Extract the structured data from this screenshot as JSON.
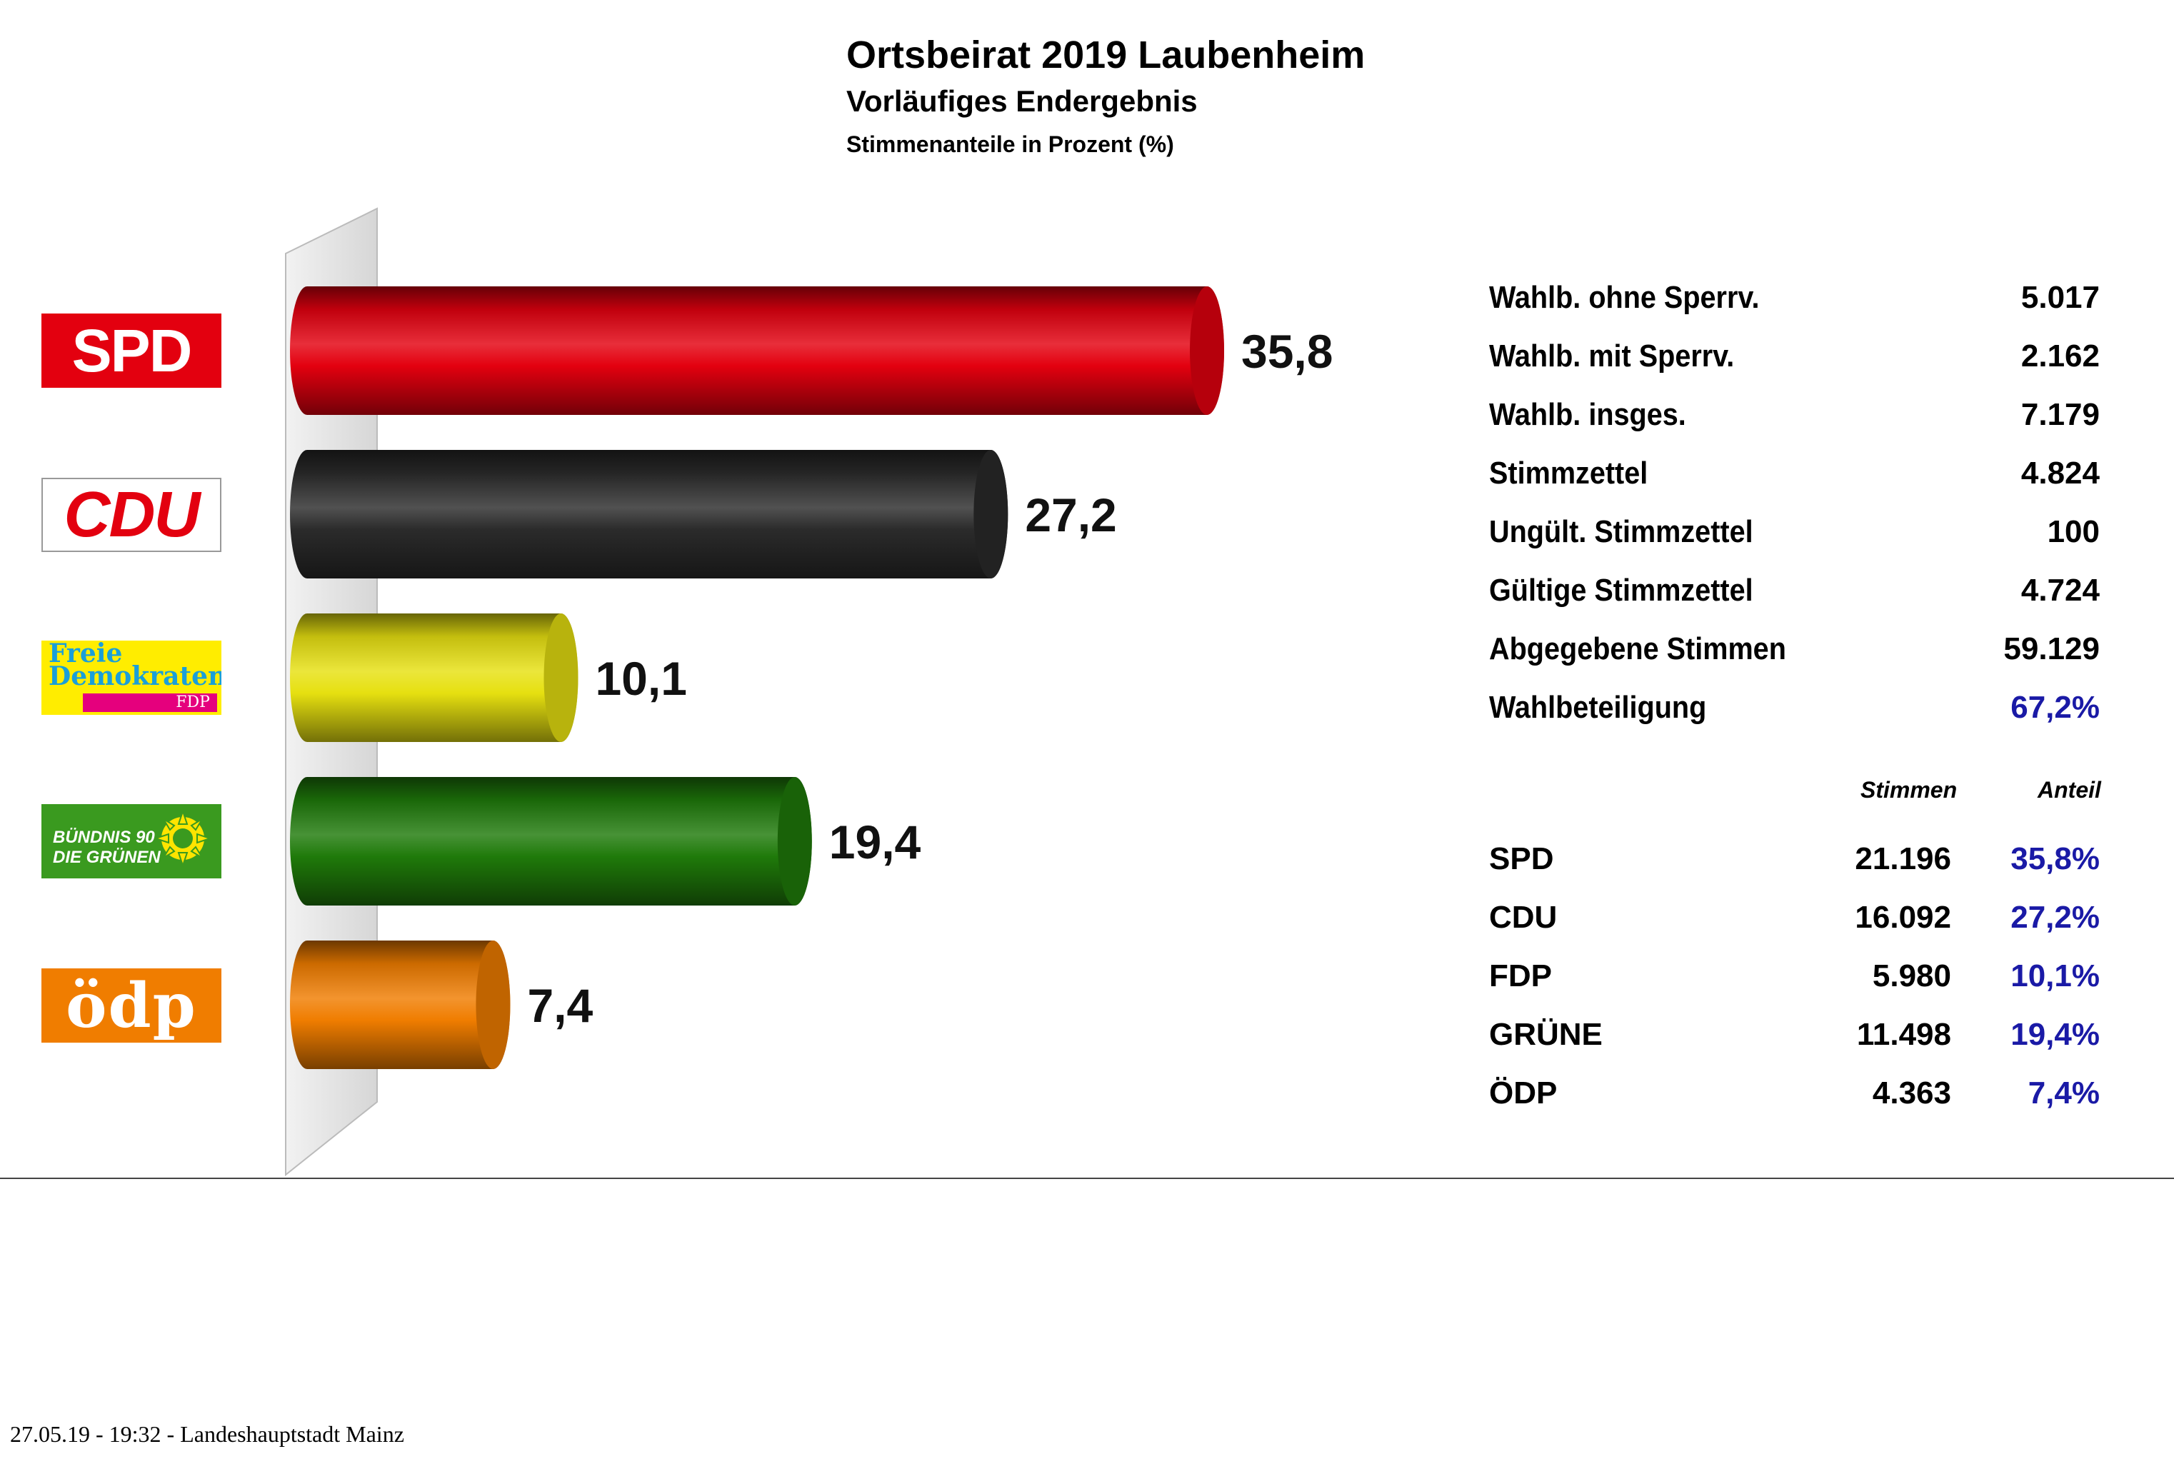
{
  "header": {
    "title": "Ortsbeirat 2019 Laubenheim",
    "subtitle": "Vorläufiges Endergebnis",
    "subsubtitle": "Stimmenanteile in Prozent (%)"
  },
  "logos": {
    "spd": "SPD",
    "cdu": "CDU",
    "fdp_line1": "Freie",
    "fdp_line2": "Demokraten",
    "fdp_line3": "FDP",
    "gruene_line1": "BÜNDNIS 90",
    "gruene_line2": "DIE GRÜNEN",
    "oedp": "ödp"
  },
  "colors": {
    "spd": "#e3000f",
    "cdu": "#2b2b2b",
    "fdp": "#e6e010",
    "gruene": "#1f7a0a",
    "oedp": "#f07d00",
    "share_text": "#1a1aa6"
  },
  "chart_data": {
    "type": "bar",
    "orientation": "horizontal",
    "categories": [
      "SPD",
      "CDU",
      "FDP",
      "GRÜNE",
      "ÖDP"
    ],
    "values": [
      35.8,
      27.2,
      10.1,
      19.4,
      7.4
    ],
    "value_labels": [
      "35,8",
      "27,2",
      "10,1",
      "19,4",
      "7,4"
    ],
    "xlim": [
      0,
      40
    ],
    "grid": false,
    "legend": "none"
  },
  "stats": [
    {
      "label": "Wahlb. ohne Sperrv.",
      "value": "5.017"
    },
    {
      "label": "Wahlb. mit Sperrv.",
      "value": "2.162"
    },
    {
      "label": "Wahlb. insges.",
      "value": "7.179"
    },
    {
      "label": "Stimmzettel",
      "value": "4.824"
    },
    {
      "label": "Ungült. Stimmzettel",
      "value": "100"
    },
    {
      "label": "Gültige Stimmzettel",
      "value": "4.724"
    },
    {
      "label": "Abgegebene Stimmen",
      "value": "59.129"
    },
    {
      "label": "Wahlbeteiligung",
      "value": "67,2%"
    }
  ],
  "results": {
    "col_votes": "Stimmen",
    "col_share": "Anteil",
    "rows": [
      {
        "party": "SPD",
        "votes": "21.196",
        "share": "35,8%"
      },
      {
        "party": "CDU",
        "votes": "16.092",
        "share": "27,2%"
      },
      {
        "party": "FDP",
        "votes": "5.980",
        "share": "10,1%"
      },
      {
        "party": "GRÜNE",
        "votes": "11.498",
        "share": "19,4%"
      },
      {
        "party": "ÖDP",
        "votes": "4.363",
        "share": "7,4%"
      }
    ]
  },
  "footer": {
    "text": "27.05.19  -  19:32  -  Landeshauptstadt Mainz"
  }
}
